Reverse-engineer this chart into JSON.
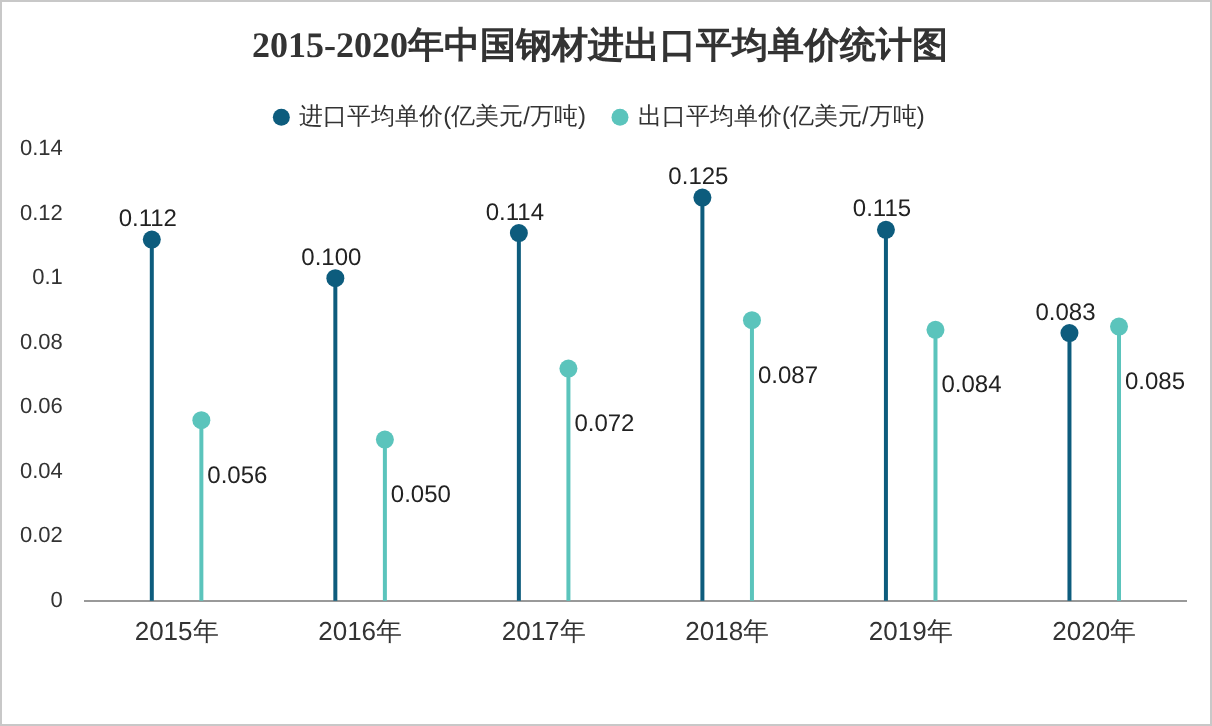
{
  "chart_data": {
    "type": "lollipop",
    "title": "2015-2020年中国钢材进出口平均单价统计图",
    "categories": [
      "2015年",
      "2016年",
      "2017年",
      "2018年",
      "2019年",
      "2020年"
    ],
    "series": [
      {
        "name": "进口平均单价(亿美元/万吨)",
        "color": "#0d5c7d",
        "values": [
          0.112,
          0.1,
          0.114,
          0.125,
          0.115,
          0.083
        ],
        "value_labels": [
          "0.112",
          "0.100",
          "0.114",
          "0.125",
          "0.115",
          "0.083"
        ]
      },
      {
        "name": "出口平均单价(亿美元/万吨)",
        "color": "#5bc4bc",
        "values": [
          0.056,
          0.05,
          0.072,
          0.087,
          0.084,
          0.085
        ],
        "value_labels": [
          "0.056",
          "0.050",
          "0.072",
          "0.087",
          "0.084",
          "0.085"
        ]
      }
    ],
    "ylim": [
      0,
      0.14
    ],
    "yticks": [
      0,
      0.02,
      0.04,
      0.06,
      0.08,
      0.1,
      0.12,
      0.14
    ],
    "grid": false,
    "legend": "top",
    "marker": "circle"
  }
}
